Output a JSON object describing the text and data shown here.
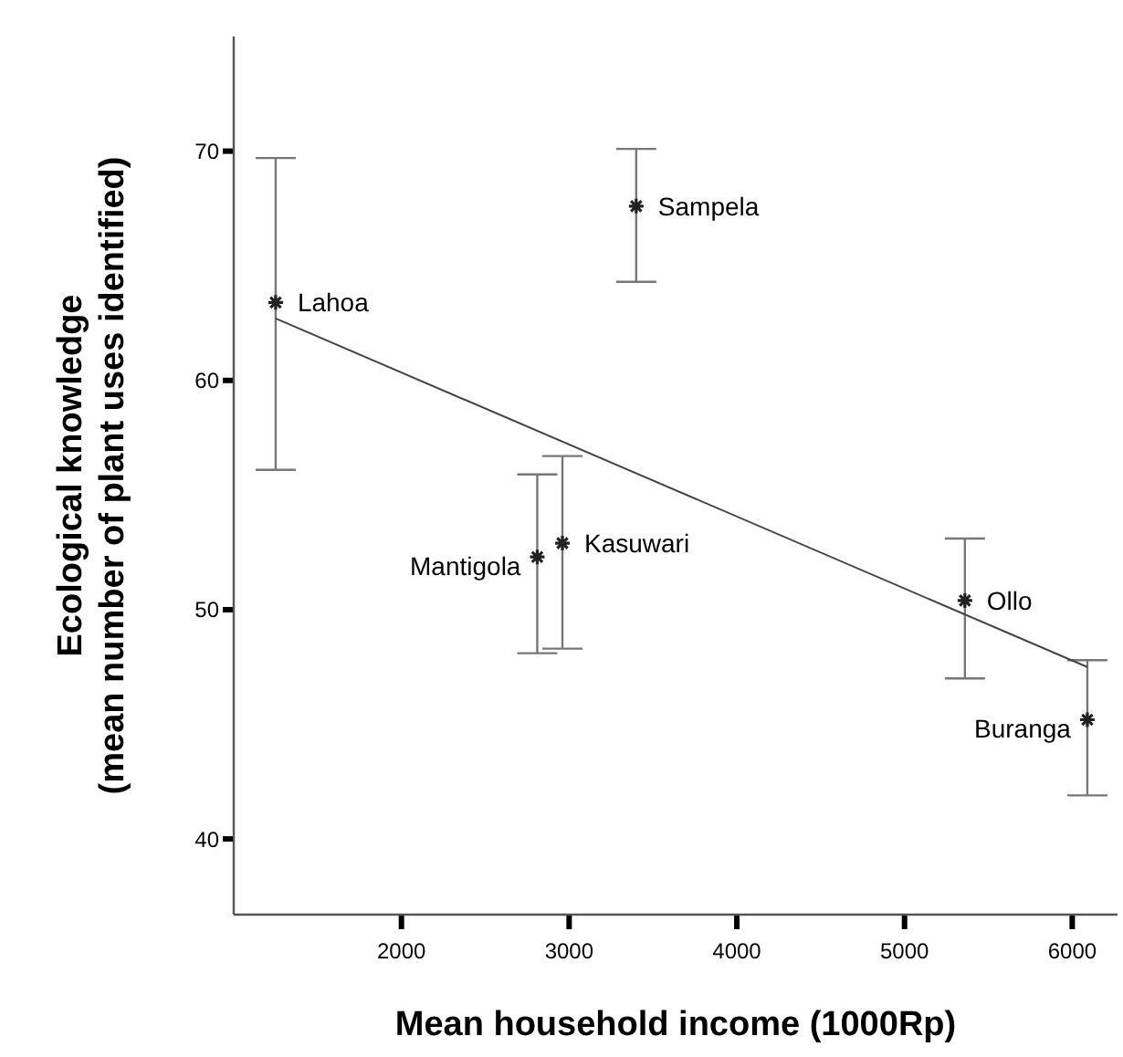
{
  "chart_data": {
    "type": "scatter",
    "xlabel": "Mean household income (1000Rp)",
    "ylabel": "Ecological knowledge\n(mean number of plant uses identified)",
    "xlim": [
      1000,
      6270
    ],
    "ylim": [
      36.7,
      75
    ],
    "xticks": [
      2000,
      3000,
      4000,
      5000,
      6000
    ],
    "yticks": [
      40,
      50,
      60,
      70
    ],
    "grid": false,
    "series": [
      {
        "color": "#222222",
        "marker": "cross",
        "x": [
          1250,
          3400,
          2810,
          2960,
          5360,
          6090
        ],
        "values": [
          63.4,
          67.6,
          52.3,
          52.9,
          50.4,
          45.2
        ],
        "errors": [
          [
            56.1,
            69.7
          ],
          [
            64.3,
            70.1
          ],
          [
            48.1,
            55.9
          ],
          [
            48.3,
            56.7
          ],
          [
            47.0,
            53.1
          ],
          [
            41.9,
            47.8
          ]
        ]
      },
      {
        "type": "line",
        "color": "#444444",
        "line_style": "solid",
        "x": [
          1250,
          6090
        ],
        "values": [
          62.7,
          47.5
        ]
      }
    ],
    "annotations": [
      {
        "text": "Lahoa",
        "x": 1250,
        "y": 63.4
      },
      {
        "text": "Sampela",
        "x": 3400,
        "y": 67.6
      },
      {
        "text": "Mantigola",
        "x": 2810,
        "y": 52.3
      },
      {
        "text": "Kasuwari",
        "x": 2960,
        "y": 52.9
      },
      {
        "text": "Ollo",
        "x": 5360,
        "y": 50.4
      },
      {
        "text": "Buranga",
        "x": 6090,
        "y": 45.2
      }
    ]
  }
}
